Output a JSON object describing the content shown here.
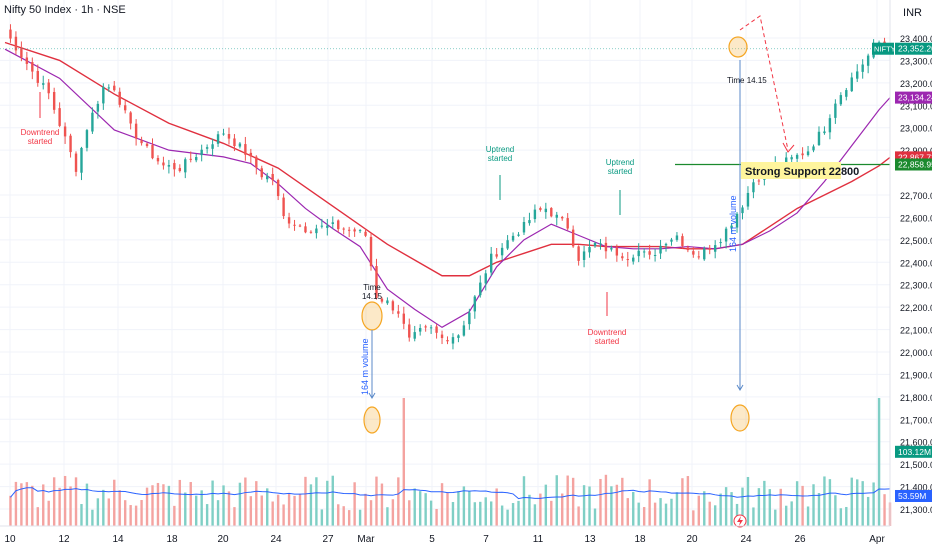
{
  "header": {
    "title": "Nifty 50 Index · 1h · NSE",
    "currency": "INR"
  },
  "colors": {
    "up": "#26a69a",
    "down": "#ef5350",
    "vol_up": "#7fcfc5",
    "vol_down": "#f4a3a0",
    "ma_slow": "#e0303f",
    "ma_fast": "#9c27b0",
    "vol_ma": "#2962ff",
    "support": "#1b8a2e",
    "annotation_up": "#089981",
    "annotation_down": "#f23645",
    "volume_text": "#2962ff",
    "highlight": "#f5a623"
  },
  "chart_data": {
    "type": "candlestick",
    "title": "Nifty 50 Index · 1h · NSE",
    "ylim": [
      21220,
      23500
    ],
    "x_ticks": [
      "10",
      "12",
      "14",
      "18",
      "20",
      "24",
      "27",
      "Mar",
      "5",
      "7",
      "11",
      "13",
      "18",
      "20",
      "24",
      "26",
      "Apr"
    ],
    "y_ticks": [
      "23,400.00",
      "23,300.00",
      "23,200.00",
      "23,100.00",
      "23,000.00",
      "22,900.00",
      "22,700.00",
      "22,600.00",
      "22,500.00",
      "22,400.00",
      "22,300.00",
      "22,200.00",
      "22,100.00",
      "22,000.00",
      "21,900.00",
      "21,800.00",
      "21,700.00",
      "21,600.00",
      "21,500.00",
      "21,400.00",
      "21,300.00"
    ],
    "price_path": [
      [
        0,
        23430
      ],
      [
        2,
        23360
      ],
      [
        5,
        23250
      ],
      [
        8,
        23150
      ],
      [
        11,
        22950
      ],
      [
        13,
        22820
      ],
      [
        15,
        23000
      ],
      [
        18,
        23180
      ],
      [
        20,
        23180
      ],
      [
        23,
        23000
      ],
      [
        26,
        22900
      ],
      [
        29,
        22830
      ],
      [
        32,
        22820
      ],
      [
        36,
        22900
      ],
      [
        40,
        22980
      ],
      [
        44,
        22890
      ],
      [
        47,
        22790
      ],
      [
        49,
        22770
      ],
      [
        51,
        22600
      ],
      [
        55,
        22550
      ],
      [
        60,
        22560
      ],
      [
        64,
        22540
      ],
      [
        66,
        22520
      ],
      [
        68,
        22250
      ],
      [
        70,
        22220
      ],
      [
        72,
        22180
      ],
      [
        74,
        22050
      ],
      [
        76,
        22090
      ],
      [
        78,
        22100
      ],
      [
        80,
        22060
      ],
      [
        83,
        22080
      ],
      [
        85,
        22180
      ],
      [
        87,
        22300
      ],
      [
        89,
        22420
      ],
      [
        91,
        22470
      ],
      [
        93,
        22520
      ],
      [
        95,
        22560
      ],
      [
        97,
        22620
      ],
      [
        99,
        22640
      ],
      [
        101,
        22600
      ],
      [
        103,
        22560
      ],
      [
        105,
        22420
      ],
      [
        108,
        22480
      ],
      [
        111,
        22450
      ],
      [
        114,
        22430
      ],
      [
        116,
        22450
      ],
      [
        118,
        22420
      ],
      [
        121,
        22500
      ],
      [
        123,
        22520
      ],
      [
        125,
        22460
      ],
      [
        127,
        22430
      ],
      [
        129,
        22470
      ],
      [
        131,
        22510
      ],
      [
        133,
        22580
      ],
      [
        135,
        22660
      ],
      [
        137,
        22760
      ],
      [
        139,
        22800
      ],
      [
        141,
        22830
      ],
      [
        144,
        22860
      ],
      [
        147,
        22900
      ],
      [
        150,
        23000
      ],
      [
        152,
        23120
      ],
      [
        155,
        23220
      ],
      [
        158,
        23320
      ],
      [
        160,
        23380
      ],
      [
        162,
        23352
      ]
    ],
    "ma_slow": [
      [
        0,
        23380
      ],
      [
        10,
        23300
      ],
      [
        20,
        23150
      ],
      [
        30,
        23020
      ],
      [
        40,
        22930
      ],
      [
        50,
        22820
      ],
      [
        60,
        22650
      ],
      [
        70,
        22480
      ],
      [
        80,
        22340
      ],
      [
        85,
        22340
      ],
      [
        90,
        22400
      ],
      [
        95,
        22440
      ],
      [
        100,
        22480
      ],
      [
        105,
        22480
      ],
      [
        110,
        22470
      ],
      [
        115,
        22470
      ],
      [
        120,
        22470
      ],
      [
        125,
        22460
      ],
      [
        130,
        22460
      ],
      [
        135,
        22480
      ],
      [
        140,
        22560
      ],
      [
        145,
        22640
      ],
      [
        150,
        22700
      ],
      [
        155,
        22760
      ],
      [
        160,
        22830
      ],
      [
        162,
        22867.72
      ]
    ],
    "ma_fast": [
      [
        0,
        23350
      ],
      [
        10,
        23220
      ],
      [
        20,
        22990
      ],
      [
        30,
        22900
      ],
      [
        40,
        22870
      ],
      [
        45,
        22840
      ],
      [
        50,
        22750
      ],
      [
        55,
        22640
      ],
      [
        60,
        22550
      ],
      [
        65,
        22470
      ],
      [
        70,
        22280
      ],
      [
        75,
        22190
      ],
      [
        80,
        22110
      ],
      [
        85,
        22180
      ],
      [
        90,
        22380
      ],
      [
        95,
        22500
      ],
      [
        100,
        22570
      ],
      [
        105,
        22520
      ],
      [
        110,
        22470
      ],
      [
        115,
        22460
      ],
      [
        120,
        22460
      ],
      [
        125,
        22470
      ],
      [
        130,
        22460
      ],
      [
        135,
        22480
      ],
      [
        140,
        22540
      ],
      [
        145,
        22620
      ],
      [
        150,
        22760
      ],
      [
        155,
        22920
      ],
      [
        160,
        23080
      ],
      [
        162,
        23134.24
      ]
    ],
    "volume_spikes": [
      {
        "i": 73,
        "v": 1.0
      },
      {
        "i": 160,
        "v": 1.0
      },
      {
        "i": 72,
        "v": 0.38
      },
      {
        "i": 110,
        "v": 0.4
      },
      {
        "i": 145,
        "v": 0.35
      }
    ],
    "price_labels": [
      {
        "id": "last",
        "name": "NIFTY",
        "value": "23,352.20",
        "color": "#089981",
        "price": 23352.2
      },
      {
        "id": "ma_fast",
        "value": "23,134.24",
        "color": "#9c27b0",
        "price": 23134.24
      },
      {
        "id": "ma_slow",
        "value": "22,867.72",
        "color": "#e0303f",
        "price": 22867.72
      },
      {
        "id": "support",
        "value": "22,858.95",
        "color": "#1b8a2e",
        "price": 22836
      },
      {
        "id": "vol_last",
        "value": "103.12M",
        "color": "#089981",
        "price": 21555
      },
      {
        "id": "vol_ma",
        "value": "53.59M",
        "color": "#2962ff",
        "price": 21358
      }
    ],
    "annotations": {
      "downtrend_1": [
        "Downtrend",
        "started"
      ],
      "uptrend_1": [
        "Uptrend",
        "started"
      ],
      "uptrend_2": [
        "Uptrend",
        "started"
      ],
      "downtrend_2": [
        "Downtrend",
        "started"
      ],
      "time_1": [
        "Time",
        "14.15"
      ],
      "time_2": "Time 14.15",
      "volume_1": "164 m volume",
      "volume_2": "164 m volume",
      "support": "Strong Support 22800"
    }
  }
}
